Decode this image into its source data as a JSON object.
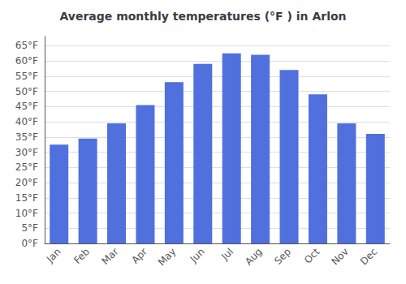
{
  "chart_data": {
    "type": "bar",
    "title": "Average monthly temperatures (°F ) in Arlon",
    "categories": [
      "Jan",
      "Feb",
      "Mar",
      "Apr",
      "May",
      "Jun",
      "Jul",
      "Aug",
      "Sep",
      "Oct",
      "Nov",
      "Dec"
    ],
    "values": [
      32.5,
      34.5,
      39.5,
      45.5,
      53.0,
      59.0,
      62.5,
      62.0,
      57.0,
      49.0,
      39.5,
      36.0
    ],
    "ylim": [
      0,
      68
    ],
    "yticks": [
      {
        "value": 0,
        "label": "0°F"
      },
      {
        "value": 5,
        "label": "5°F"
      },
      {
        "value": 10,
        "label": "10°F"
      },
      {
        "value": 15,
        "label": "15°F"
      },
      {
        "value": 20,
        "label": "20°F"
      },
      {
        "value": 25,
        "label": "25°F"
      },
      {
        "value": 30,
        "label": "30°F"
      },
      {
        "value": 35,
        "label": "35°F"
      },
      {
        "value": 40,
        "label": "40°F"
      },
      {
        "value": 45,
        "label": "45°F"
      },
      {
        "value": 50,
        "label": "50°F"
      },
      {
        "value": 55,
        "label": "55°F"
      },
      {
        "value": 60,
        "label": "60°F"
      },
      {
        "value": 65,
        "label": "65°F"
      }
    ],
    "grid": true
  }
}
